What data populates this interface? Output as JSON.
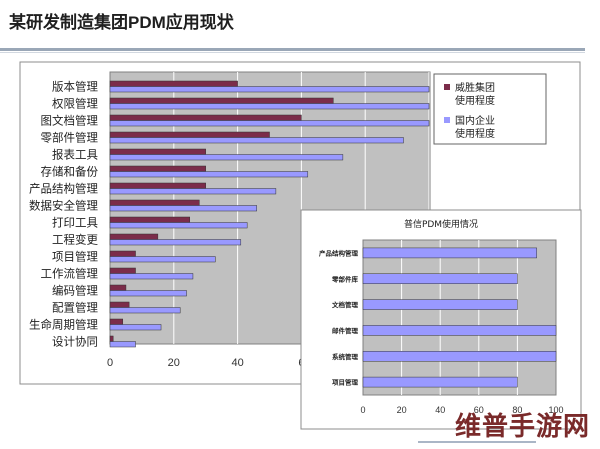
{
  "slide": {
    "title": "某研发制造集团PDM应用现状",
    "watermark": "维普手游网"
  },
  "chart_data": [
    {
      "type": "bar",
      "orientation": "horizontal",
      "title": "",
      "categories": [
        "版本管理",
        "权限管理",
        "图文档管理",
        "零部件管理",
        "报表工具",
        "存储和备份",
        "产品结构管理",
        "数据安全管理",
        "打印工具",
        "工程变更",
        "项目管理",
        "工作流管理",
        "编码管理",
        "配置管理",
        "生命周期管理",
        "设计协同"
      ],
      "series": [
        {
          "name": "威胜集团使用程度",
          "color": "#7b2c4a",
          "values": [
            40,
            70,
            60,
            50,
            30,
            30,
            30,
            28,
            25,
            15,
            8,
            8,
            5,
            6,
            4,
            1
          ]
        },
        {
          "name": "国内企业使用程度",
          "color": "#9999ff",
          "values": [
            100,
            100,
            100,
            92,
            73,
            62,
            52,
            46,
            43,
            41,
            33,
            26,
            24,
            22,
            16,
            8
          ]
        }
      ],
      "legend_labels": [
        [
          "威胜集团",
          "使用程度"
        ],
        [
          "国内企业",
          "使用程度"
        ]
      ],
      "xlim": [
        0,
        100
      ],
      "xticks": [
        "0",
        "20",
        "40",
        "6"
      ],
      "grid": true,
      "legend": "top-right"
    },
    {
      "type": "bar",
      "orientation": "horizontal",
      "title": "普信PDM使用情况",
      "categories": [
        "产品结构管理",
        "零部件库",
        "文档管理",
        "邮件管理",
        "系统管理",
        "项目管理"
      ],
      "series": [
        {
          "name": "",
          "color": "#9999ff",
          "values": [
            90,
            80,
            80,
            100,
            100,
            80
          ]
        }
      ],
      "xlim": [
        0,
        100
      ],
      "xticks": [
        "0",
        "20",
        "40",
        "60",
        "80",
        "100"
      ],
      "grid": true,
      "legend": "none"
    }
  ]
}
